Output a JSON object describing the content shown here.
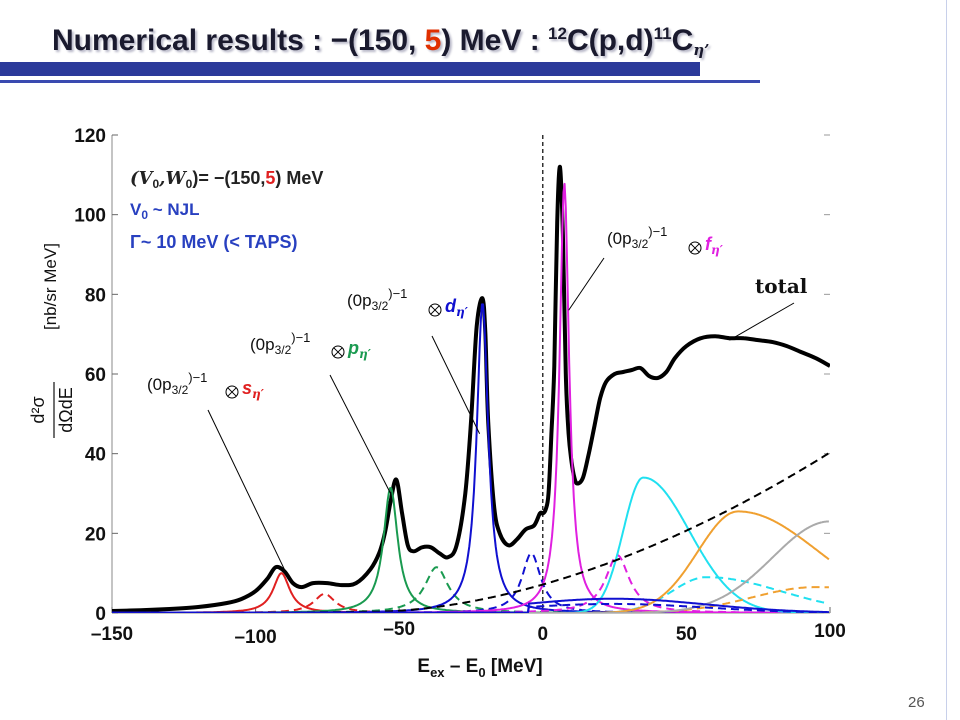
{
  "slide": {
    "title_prefix": "Numerical results : −(150, ",
    "title_red": "5",
    "title_mid": ") MeV : ",
    "title_sup1": "12",
    "title_c": "C(p,d)",
    "title_sup2": "11",
    "title_c2": "C",
    "title_sub": "η’",
    "page_number": "26"
  },
  "colors": {
    "title_bar": "#2b3a9a",
    "red": "#e02020",
    "green": "#1a9a50",
    "blue": "#1010d0",
    "magenta": "#e020e0",
    "cyan": "#20e0f0",
    "orange": "#f0a030",
    "gray": "#aaaaaa",
    "total": "#000000",
    "param_blue": "#2840c0"
  },
  "params": {
    "line1_prefix": "(V",
    "line1_sub0": "0",
    "line1_mid": ",W",
    "line1_sub1": "0",
    "line1_eq": ")= −(150,",
    "line1_red": "5",
    "line1_suffix": ") MeV",
    "line2": "V",
    "line2_sub": "0",
    "line2_rest": " ~ NJL",
    "line3": "Γ~ 10 MeV (< TAPS)"
  },
  "chart_data": {
    "type": "line",
    "xlabel": "E",
    "xlabel_sub": "ex",
    "xlabel_mid": " – E",
    "xlabel_sub2": "0",
    "xlabel_unit": " [MeV]",
    "ylabel_num": "d²σ",
    "ylabel_den": "dΩdE",
    "ylabel_unit": "[nb/sr MeV]",
    "xlim": [
      -150,
      100
    ],
    "ylim": [
      0,
      120
    ],
    "x_ticks": [
      "–150",
      "–100",
      "–50",
      "0",
      "50",
      "100"
    ],
    "y_ticks": [
      "0",
      "20",
      "40",
      "60",
      "80",
      "100",
      "120"
    ],
    "threshold_line_x": 0,
    "labels": {
      "s": {
        "hole": "(0p",
        "hole_sub": "3/2",
        "hole_sup": ")−1",
        "orbit": "s",
        "orbit_sub": "η′"
      },
      "p": {
        "hole": "(0p",
        "hole_sub": "3/2",
        "hole_sup": ")−1",
        "orbit": "p",
        "orbit_sub": "η′"
      },
      "d": {
        "hole": "(0p",
        "hole_sub": "3/2",
        "hole_sup": ")−1",
        "orbit": "d",
        "orbit_sub": "η′"
      },
      "f": {
        "hole": "(0p",
        "hole_sub": "3/2",
        "hole_sup": ")−1",
        "orbit": "f",
        "orbit_sub": "η′"
      },
      "total": "total"
    },
    "series": [
      {
        "name": "total",
        "style": "solid-thick",
        "color": "#000000",
        "x": [
          -150,
          -140,
          -130,
          -120,
          -110,
          -105,
          -100,
          -96,
          -93,
          -90,
          -87,
          -84,
          -80,
          -75,
          -70,
          -65,
          -60,
          -57,
          -55,
          -53,
          -51,
          -49,
          -47,
          -45,
          -42,
          -39,
          -36,
          -33,
          -30,
          -27,
          -25,
          -23,
          -21,
          -20,
          -19,
          -17,
          -15,
          -12,
          -9,
          -6,
          -3,
          -1,
          0,
          1,
          2,
          3,
          4,
          5,
          6,
          7,
          8,
          9,
          10,
          11,
          12,
          14,
          16,
          18,
          20,
          22,
          25,
          28,
          31,
          34,
          37,
          40,
          43,
          46,
          50,
          55,
          60,
          65,
          70,
          75,
          80,
          85,
          90,
          95,
          100
        ],
        "y": [
          0.5,
          0.7,
          1.0,
          1.5,
          2.5,
          3.5,
          5.5,
          8.5,
          11.5,
          10.5,
          7.5,
          6.5,
          7.5,
          7.5,
          7,
          7.5,
          11,
          15,
          20,
          28,
          33.5,
          25,
          17,
          15.5,
          16.5,
          16.5,
          15,
          14,
          17,
          30,
          48,
          72,
          79,
          70,
          48,
          27,
          20,
          17,
          18.5,
          21,
          22,
          25,
          25,
          26,
          30,
          45,
          62,
          98,
          112,
          95,
          60,
          45,
          38,
          34,
          32.5,
          34,
          40,
          47,
          54,
          58,
          60,
          60.5,
          61,
          61.5,
          59.5,
          59,
          60.5,
          64,
          67,
          69,
          69.5,
          69,
          69,
          68.5,
          68,
          67,
          65.5,
          64,
          62
        ]
      },
      {
        "name": "s",
        "style": "solid",
        "color": "#e02020",
        "type": "lorentz",
        "center": -91,
        "amp": 10,
        "width": 3.5
      },
      {
        "name": "s-dashed",
        "style": "dashed",
        "color": "#e02020",
        "type": "lorentz",
        "center": -76,
        "amp": 4.8,
        "width": 4.5
      },
      {
        "name": "p",
        "style": "solid",
        "color": "#1a9a50",
        "type": "lorentz",
        "center": -53,
        "amp": 31.5,
        "width": 3.0
      },
      {
        "name": "p-dashed",
        "style": "dashed",
        "color": "#1a9a50",
        "type": "lorentz",
        "center": -37,
        "amp": 11.5,
        "width": 5.0
      },
      {
        "name": "d",
        "style": "solid",
        "color": "#1010d0",
        "type": "lorentz",
        "center": -21,
        "amp": 78,
        "width": 2.4
      },
      {
        "name": "d-dashed",
        "style": "dashed",
        "color": "#1010d0",
        "type": "lorentz",
        "center": -4,
        "amp": 15,
        "width": 4.0
      },
      {
        "name": "f",
        "style": "solid",
        "color": "#e020e0",
        "type": "lorentz",
        "center": 7.5,
        "amp": 108,
        "width": 2.0
      },
      {
        "name": "f-dashed",
        "style": "dashed",
        "color": "#e020e0",
        "type": "lorentz",
        "center": 26,
        "amp": 14.5,
        "width": 5.0
      },
      {
        "name": "cyan",
        "style": "solid",
        "color": "#20e0f0",
        "type": "bump",
        "center": 35,
        "amp": 34,
        "sl": 7,
        "sr": 16
      },
      {
        "name": "cyan-dashed",
        "style": "dashed",
        "color": "#20e0f0",
        "type": "bump",
        "center": 57,
        "amp": 9,
        "sl": 12,
        "sr": 26
      },
      {
        "name": "orange",
        "style": "solid",
        "color": "#f0a030",
        "type": "bump",
        "center": 68,
        "amp": 25.5,
        "sl": 14,
        "sr": 28
      },
      {
        "name": "orange-dashed",
        "style": "dashed",
        "color": "#f0a030",
        "type": "bump",
        "center": 95,
        "amp": 6.5,
        "sl": 22,
        "sr": 40
      },
      {
        "name": "gray",
        "style": "solid",
        "color": "#aaaaaa",
        "type": "bump",
        "center": 100,
        "amp": 23,
        "sl": 20,
        "sr": 40
      },
      {
        "name": "background",
        "style": "dashed",
        "color": "#000000",
        "type": "rise",
        "x0": -60,
        "amp": 40,
        "xend": 100
      },
      {
        "name": "tail",
        "style": "solid",
        "color": "#1010d0",
        "type": "tail",
        "amp": 3.5
      },
      {
        "name": "tail-dashed",
        "style": "dashed",
        "color": "#1010d0",
        "type": "tail",
        "amp": 2.2
      }
    ]
  }
}
